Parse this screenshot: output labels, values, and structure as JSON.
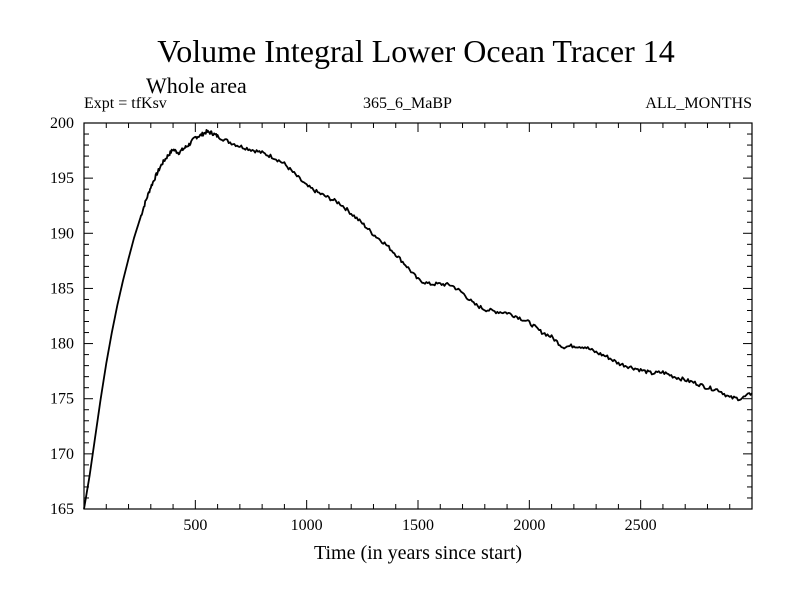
{
  "chart_data": {
    "type": "line",
    "title": "Volume Integral Lower Ocean Tracer 14",
    "subtitle": "Whole area",
    "expt_label": "Expt = tfKsv",
    "center_label": "365_6_MaBP",
    "right_label": "ALL_MONTHS",
    "xlabel": "Time (in years since start)",
    "ylabel": "",
    "xlim": [
      0,
      3000
    ],
    "ylim": [
      165,
      200
    ],
    "xticks": [
      500,
      1000,
      1500,
      2000,
      2500
    ],
    "xtick_labels": [
      "500",
      "1000",
      "1500",
      "2000",
      "2500"
    ],
    "yticks": [
      165,
      170,
      175,
      180,
      185,
      190,
      195,
      200
    ],
    "ytick_labels": [
      "165",
      "170",
      "175",
      "180",
      "185",
      "190",
      "195",
      "200"
    ],
    "grid": false,
    "series": [
      {
        "name": "Tracer 14",
        "color": "#000000",
        "x": [
          0,
          25,
          50,
          75,
          100,
          125,
          150,
          175,
          200,
          225,
          250,
          275,
          300,
          325,
          350,
          375,
          400,
          425,
          450,
          475,
          500,
          525,
          550,
          575,
          600,
          650,
          700,
          750,
          800,
          850,
          900,
          950,
          1000,
          1050,
          1100,
          1150,
          1200,
          1250,
          1300,
          1350,
          1400,
          1450,
          1500,
          1550,
          1600,
          1650,
          1700,
          1750,
          1800,
          1850,
          1900,
          1950,
          2000,
          2050,
          2100,
          2150,
          2200,
          2250,
          2300,
          2350,
          2400,
          2450,
          2500,
          2550,
          2600,
          2650,
          2700,
          2750,
          2800,
          2850,
          2900,
          2950,
          3000
        ],
        "values": [
          165.0,
          168.0,
          171.5,
          175.0,
          178.2,
          181.0,
          183.5,
          185.7,
          187.7,
          189.6,
          191.2,
          192.8,
          194.2,
          195.3,
          196.3,
          197.0,
          197.6,
          197.3,
          197.7,
          198.1,
          198.7,
          198.9,
          199.2,
          199.1,
          198.8,
          198.3,
          197.9,
          197.6,
          197.3,
          196.9,
          196.3,
          195.3,
          194.3,
          193.7,
          193.2,
          192.7,
          191.8,
          190.9,
          189.9,
          189.1,
          188.1,
          187.0,
          185.8,
          185.4,
          185.4,
          185.3,
          184.6,
          183.6,
          183.1,
          182.9,
          182.8,
          182.4,
          181.9,
          181.1,
          180.6,
          179.7,
          179.8,
          179.7,
          179.2,
          178.8,
          178.2,
          177.9,
          177.6,
          177.3,
          177.4,
          177.0,
          176.7,
          176.4,
          176.0,
          175.8,
          175.1,
          175.0,
          175.5
        ]
      }
    ]
  }
}
